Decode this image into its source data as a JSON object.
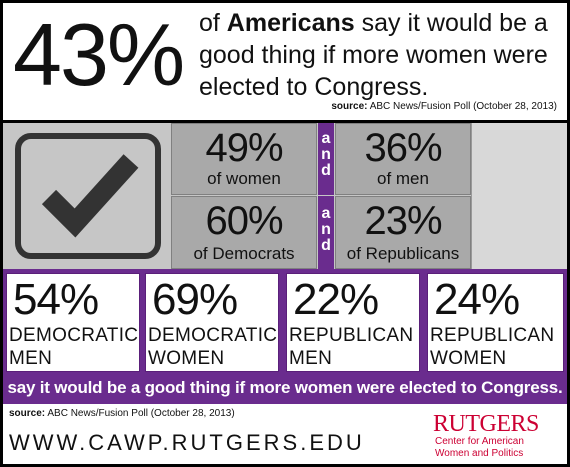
{
  "top": {
    "big_percent": "43%",
    "headline_prefix": "of ",
    "headline_bold": "Americans",
    "headline_rest": " say it would be a good thing if more women were elected to Congress.",
    "source_label": "source:",
    "source_text": " ABC News/Fusion Poll (October 28, 2013)"
  },
  "middle": {
    "and_word": [
      "a",
      "n",
      "d"
    ],
    "stats": [
      {
        "pct": "49%",
        "label": "of women"
      },
      {
        "pct": "36%",
        "label": "of men"
      },
      {
        "pct": "60%",
        "label": "of Democrats"
      },
      {
        "pct": "23%",
        "label": "of Republicans"
      }
    ]
  },
  "groups": [
    {
      "pct": "54%",
      "line1": "DEMOCRATIC",
      "line2": "MEN"
    },
    {
      "pct": "69%",
      "line1": "DEMOCRATIC",
      "line2": "WOMEN"
    },
    {
      "pct": "22%",
      "line1": "REPUBLICAN",
      "line2": "MEN"
    },
    {
      "pct": "24%",
      "line1": "REPUBLICAN",
      "line2": "WOMEN"
    }
  ],
  "banner": "say it would be a good thing if more women were elected to Congress.",
  "bottom": {
    "source_label": "source:",
    "source_text": " ABC News/Fusion Poll (October 28, 2013)",
    "url": "WWW.CAWP.RUTGERS.EDU",
    "logo_brand": "RUTGERS",
    "logo_sub1": "Center for American",
    "logo_sub2": "Women and Politics"
  },
  "colors": {
    "purple": "#6a2c8e",
    "gray_band": "#c6c6c6",
    "cell_gray": "#a9a9a9",
    "rutgers_red": "#cc0033"
  },
  "icons": {
    "check": "checkmark-icon"
  }
}
